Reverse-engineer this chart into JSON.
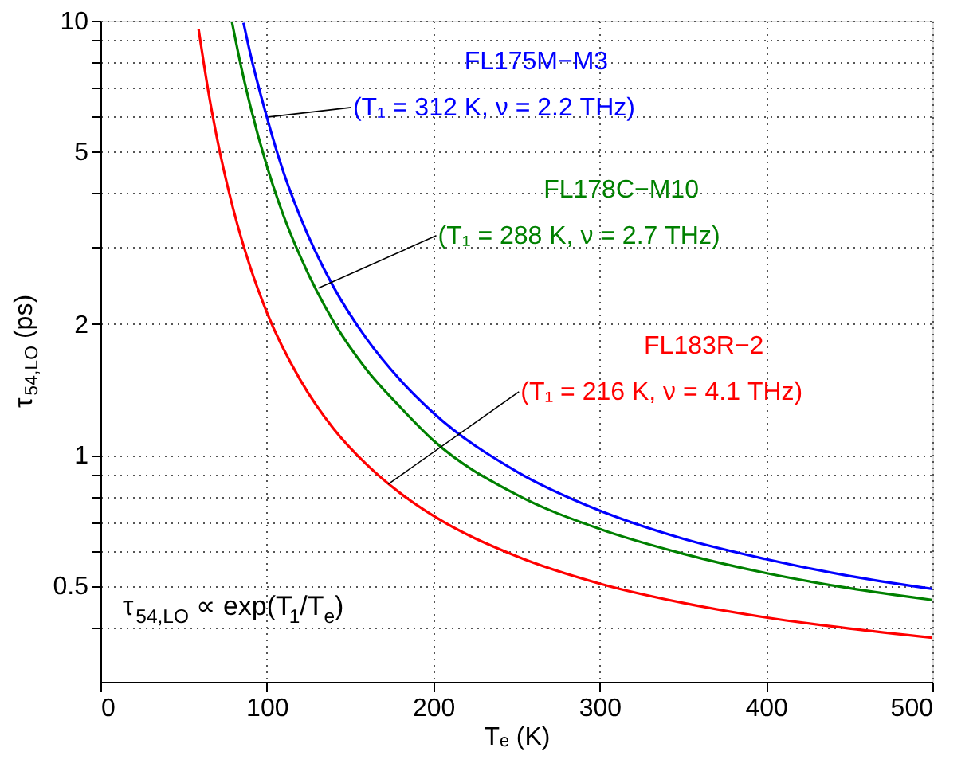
{
  "chart_data": {
    "type": "line",
    "xlabel": "Tₑ (K)",
    "ylabel": "τ$_{54,LO}$ (ps)",
    "log": "y",
    "xlim": [
      0,
      500
    ],
    "xticks": [
      0,
      100,
      200,
      300,
      400,
      500
    ],
    "ylim": [
      0.3,
      10
    ],
    "yticks": [
      {
        "value": 0.4,
        "label": null
      },
      0.5,
      {
        "value": 0.6,
        "label": null
      },
      {
        "value": 0.7,
        "label": null
      },
      {
        "value": 0.8,
        "label": null
      },
      {
        "value": 0.9,
        "label": null
      },
      1,
      2,
      {
        "value": 3,
        "label": null
      },
      {
        "value": 4,
        "label": null
      },
      5,
      {
        "value": 6,
        "label": null
      },
      {
        "value": 7,
        "label": null
      },
      {
        "value": 8,
        "label": null
      },
      {
        "value": 9,
        "label": null
      },
      10
    ],
    "grid": true,
    "marker": "none",
    "line_style": "solid",
    "series": [
      {
        "name": "FL175M−M3",
        "color": "#0000ff",
        "x": [
          86,
          90,
          100,
          110,
          120,
          140,
          160,
          180,
          200,
          250,
          300,
          350,
          400,
          450,
          500
        ],
        "values": [
          9.89,
          8.42,
          6.0,
          4.48,
          3.54,
          2.44,
          1.85,
          1.49,
          1.25,
          0.916,
          0.744,
          0.641,
          0.575,
          0.526,
          0.491
        ]
      },
      {
        "name": "FL178C−M10",
        "color": "#008000",
        "x": [
          79,
          85,
          90,
          100,
          110,
          120,
          140,
          160,
          180,
          200,
          250,
          300,
          350,
          400,
          450,
          500
        ],
        "values": [
          9.96,
          7.7,
          6.38,
          4.63,
          3.56,
          2.87,
          2.03,
          1.57,
          1.29,
          1.08,
          0.81,
          0.675,
          0.592,
          0.534,
          0.493,
          0.463
        ]
      },
      {
        "name": "FL183R−2",
        "color": "#ff0000",
        "x": [
          59,
          65,
          70,
          80,
          90,
          100,
          120,
          140,
          160,
          180,
          200,
          250,
          300,
          350,
          400,
          450,
          500
        ],
        "values": [
          9.57,
          6.82,
          5.38,
          3.66,
          2.71,
          2.13,
          1.49,
          1.15,
          0.95,
          0.817,
          0.724,
          0.584,
          0.505,
          0.456,
          0.422,
          0.398,
          0.379
        ]
      }
    ],
    "annotations": [
      {
        "text": "(T₁ = 312 K, ν = 2.2 THz)",
        "x": 101,
        "y": 6.0
      },
      {
        "text": "(T₁ = 288 K, ν = 2.7 THz)",
        "x": 131,
        "y": 2.42
      },
      {
        "text": "(T₁ = 216 K, ν = 4.1 THz)",
        "x": 173,
        "y": 0.856
      },
      "τ$_{54,LO}$ ∝ exp(T$_{1}$/T$_{e}$)"
    ]
  }
}
